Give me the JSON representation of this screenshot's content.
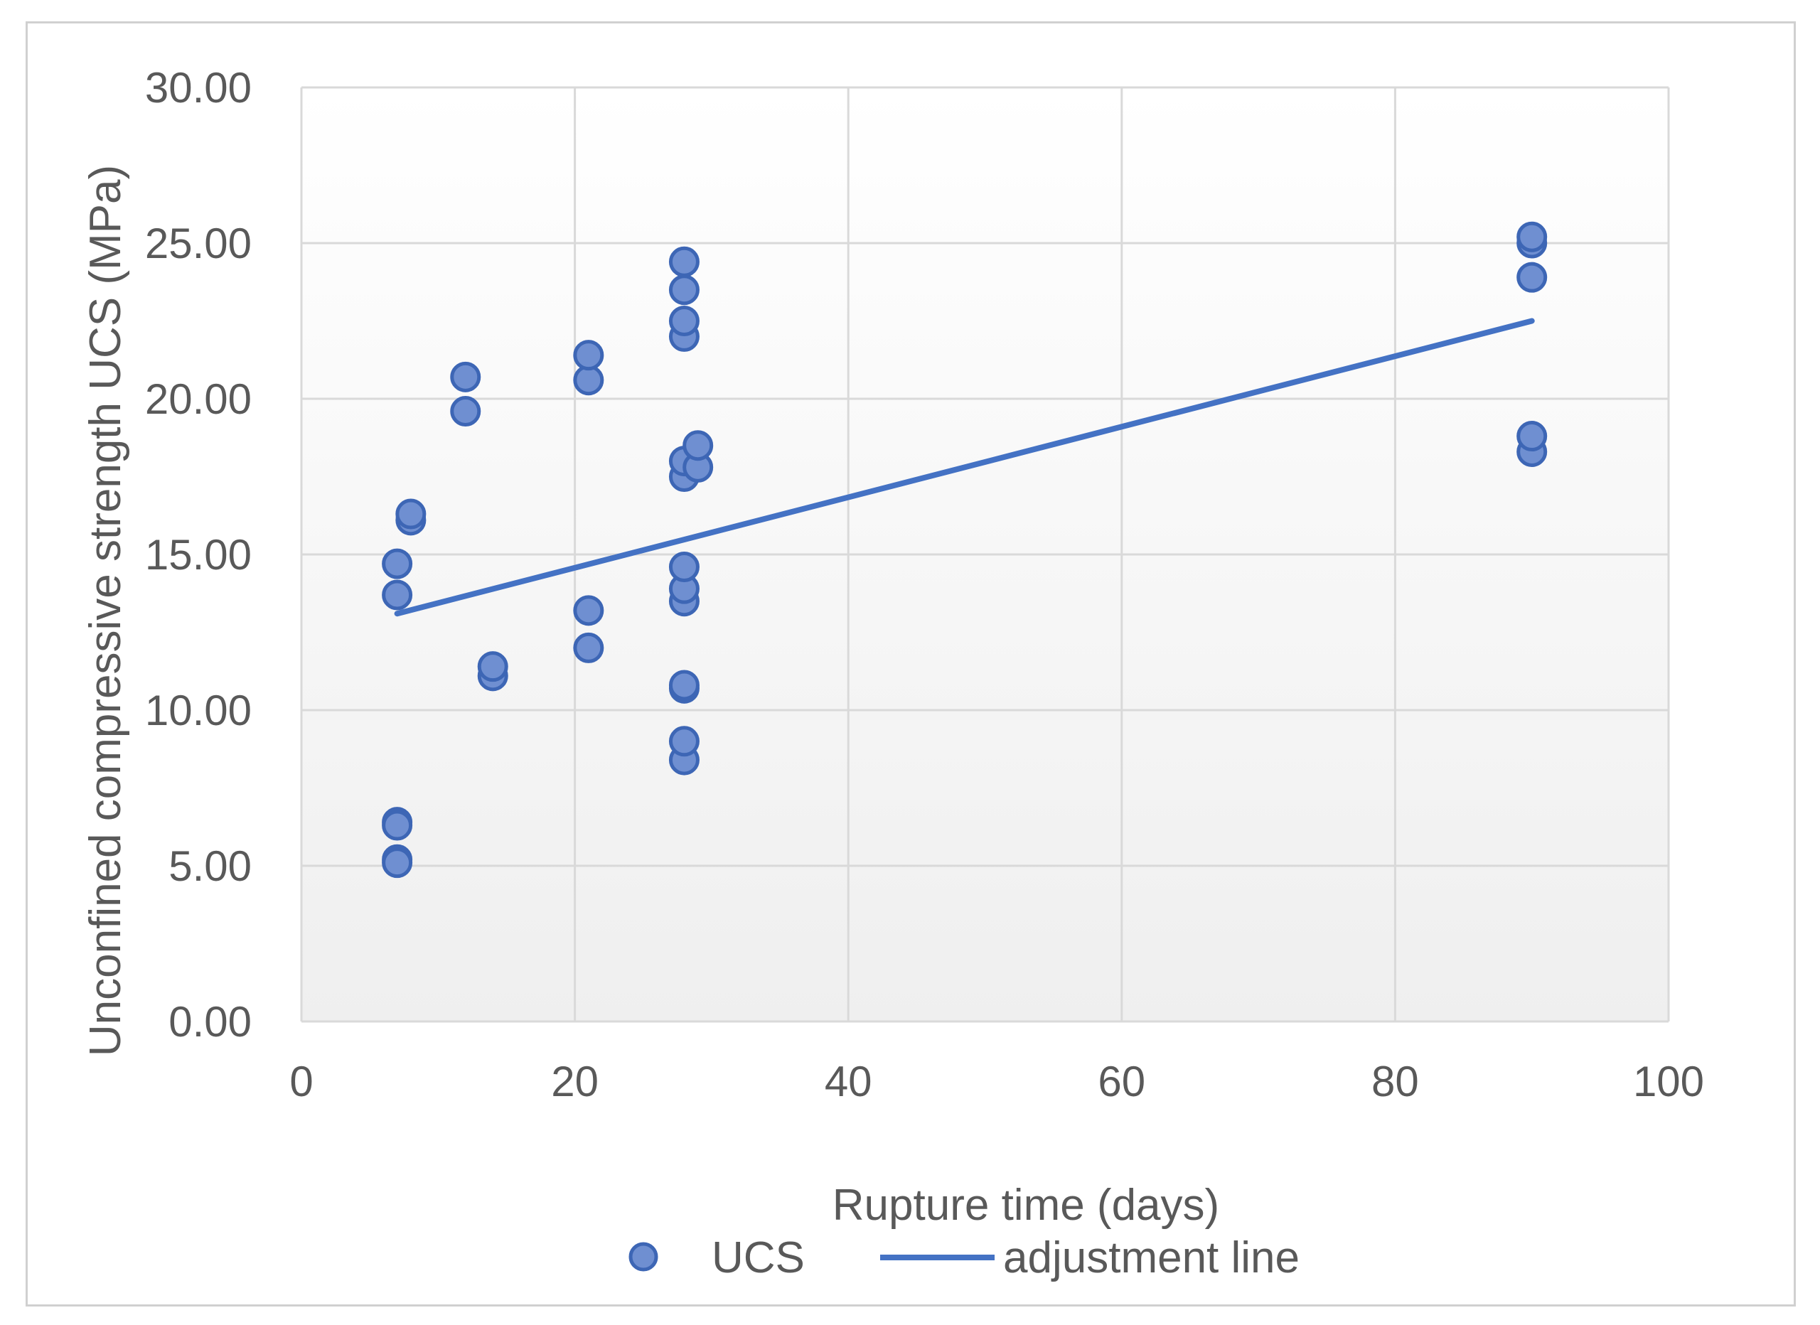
{
  "chart_data": {
    "type": "scatter",
    "title": "",
    "xlabel": "Rupture time (days)",
    "ylabel": "Unconfined compressive strength UCS (MPa)",
    "xlim": [
      0,
      100
    ],
    "ylim": [
      0,
      30
    ],
    "x_ticks": [
      "0",
      "20",
      "40",
      "60",
      "80",
      "100"
    ],
    "y_ticks": [
      "0.00",
      "5.00",
      "10.00",
      "15.00",
      "20.00",
      "25.00",
      "30.00"
    ],
    "grid": true,
    "legend_position": "bottom",
    "colors": {
      "marker_fill": "#6f8fd1",
      "marker_stroke": "#3d66b5",
      "line": "#4472c4",
      "grid": "#d9d9d9",
      "text": "#595959"
    },
    "series": [
      {
        "name": "UCS",
        "kind": "scatter",
        "points": [
          [
            7,
            5.2
          ],
          [
            7,
            5.1
          ],
          [
            7,
            6.4
          ],
          [
            7,
            6.3
          ],
          [
            7,
            13.7
          ],
          [
            7,
            14.7
          ],
          [
            8,
            16.1
          ],
          [
            8,
            16.3
          ],
          [
            12,
            19.6
          ],
          [
            12,
            20.7
          ],
          [
            14,
            11.1
          ],
          [
            14,
            11.4
          ],
          [
            21,
            12.0
          ],
          [
            21,
            13.2
          ],
          [
            21,
            20.6
          ],
          [
            21,
            21.4
          ],
          [
            28,
            8.4
          ],
          [
            28,
            9.0
          ],
          [
            28,
            10.7
          ],
          [
            28,
            10.8
          ],
          [
            28,
            13.5
          ],
          [
            28,
            13.9
          ],
          [
            28,
            14.6
          ],
          [
            28,
            17.5
          ],
          [
            28,
            18.0
          ],
          [
            28,
            22.0
          ],
          [
            28,
            22.5
          ],
          [
            28,
            23.5
          ],
          [
            28,
            24.4
          ],
          [
            29,
            17.8
          ],
          [
            29,
            18.5
          ],
          [
            90,
            18.3
          ],
          [
            90,
            18.8
          ],
          [
            90,
            23.9
          ],
          [
            90,
            25.0
          ],
          [
            90,
            25.2
          ]
        ]
      },
      {
        "name": "adjustment line",
        "kind": "line",
        "points": [
          [
            7,
            13.1
          ],
          [
            90,
            22.5
          ]
        ]
      }
    ]
  }
}
